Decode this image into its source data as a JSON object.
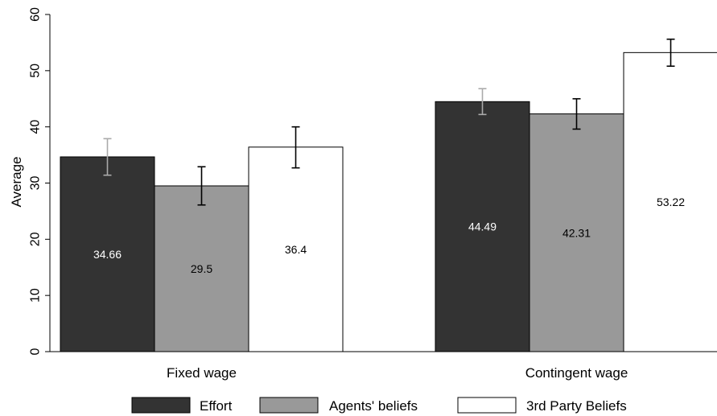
{
  "chart_data": {
    "type": "bar",
    "title": "",
    "xlabel": "",
    "ylabel": "Average",
    "ylim": [
      0,
      60
    ],
    "yticks": [
      0,
      10,
      20,
      30,
      40,
      50,
      60
    ],
    "grid": false,
    "legend_position": "bottom",
    "categories": [
      "Fixed wage",
      "Contingent wage"
    ],
    "series": [
      {
        "name": "Effort",
        "color": "#333333",
        "label_color": "#ffffff",
        "error_color": "#aaaaaa",
        "values": [
          34.66,
          44.49
        ],
        "labels": [
          "34.66",
          "44.49"
        ],
        "error_low": [
          31.4,
          42.2
        ],
        "error_high": [
          37.9,
          46.8
        ]
      },
      {
        "name": "Agents' beliefs",
        "color": "#999999",
        "label_color": "#000000",
        "error_color": "#000000",
        "values": [
          29.5,
          42.31
        ],
        "labels": [
          "29.5",
          "42.31"
        ],
        "error_low": [
          26.1,
          39.6
        ],
        "error_high": [
          32.9,
          45.0
        ]
      },
      {
        "name": "3rd Party Beliefs",
        "color": "#ffffff",
        "label_color": "#000000",
        "error_color": "#000000",
        "values": [
          36.4,
          53.22
        ],
        "labels": [
          "36.4",
          "53.22"
        ],
        "error_low": [
          32.7,
          50.8
        ],
        "error_high": [
          40.0,
          55.6
        ]
      }
    ]
  }
}
